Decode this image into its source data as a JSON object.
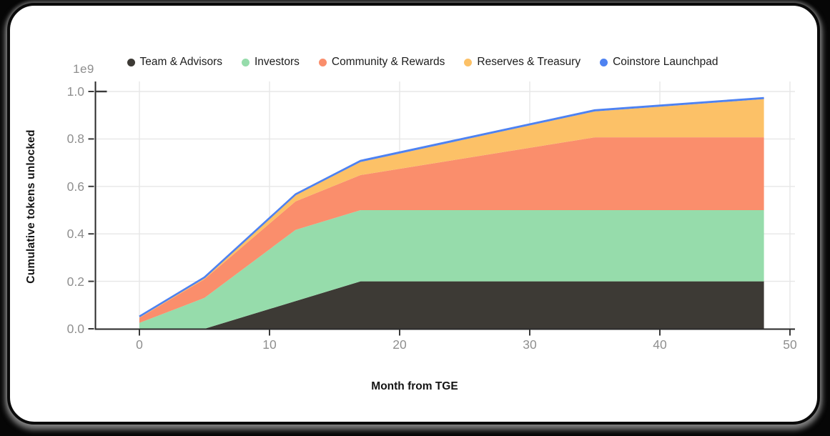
{
  "frame": {
    "page_background": "#060606",
    "card_background": "#ffffff",
    "card_border_color": "#0a0a0a"
  },
  "chart_data": {
    "type": "area",
    "stacked": true,
    "title": "",
    "xlabel": "Month from TGE",
    "ylabel": "Cumulative tokens unlocked",
    "offset_text": "1e9",
    "y_multiplier": 1000000000,
    "x": [
      0,
      5,
      12,
      17,
      35,
      48
    ],
    "series": [
      {
        "name": "Team & Advisors",
        "color": "#3d3a35",
        "values_e9": [
          0,
          0,
          0.117,
          0.2,
          0.2,
          0.2
        ]
      },
      {
        "name": "Investors",
        "color": "#96dcab",
        "values_e9": [
          0.025,
          0.13,
          0.3,
          0.3,
          0.3,
          0.3
        ]
      },
      {
        "name": "Community & Rewards",
        "color": "#fa8e6c",
        "values_e9": [
          0.021,
          0.079,
          0.12,
          0.148,
          0.307,
          0.307
        ]
      },
      {
        "name": "Reserves & Treasury",
        "color": "#fcc167",
        "values_e9": [
          0.003,
          0.005,
          0.026,
          0.055,
          0.109,
          0.161
        ]
      },
      {
        "name": "Coinstore Launchpad",
        "color": "#4e82f1",
        "values_e9": [
          0.003,
          0.003,
          0.004,
          0.005,
          0.005,
          0.005
        ]
      }
    ],
    "total_unlocked_e9_at_breakpoints": [
      0.052,
      0.217,
      0.567,
      0.708,
      0.921,
      0.973
    ],
    "xticks": [
      0,
      10,
      20,
      30,
      40,
      50
    ],
    "yticks": [
      "0.0",
      "0.2",
      "0.4",
      "0.6",
      "0.8",
      "1.0"
    ],
    "xlim": [
      -3.4,
      50.5
    ],
    "ylim_e9": [
      0,
      1.045
    ],
    "grid": true,
    "legend_position": "top-center",
    "colors": {
      "grid": "#e7e7e7",
      "spine": "#2a2a2a",
      "tick": "#3a3a3a",
      "tick_label": "#8f8f8f",
      "axis_label": "#141414",
      "top_line": "#4e82f1"
    }
  }
}
